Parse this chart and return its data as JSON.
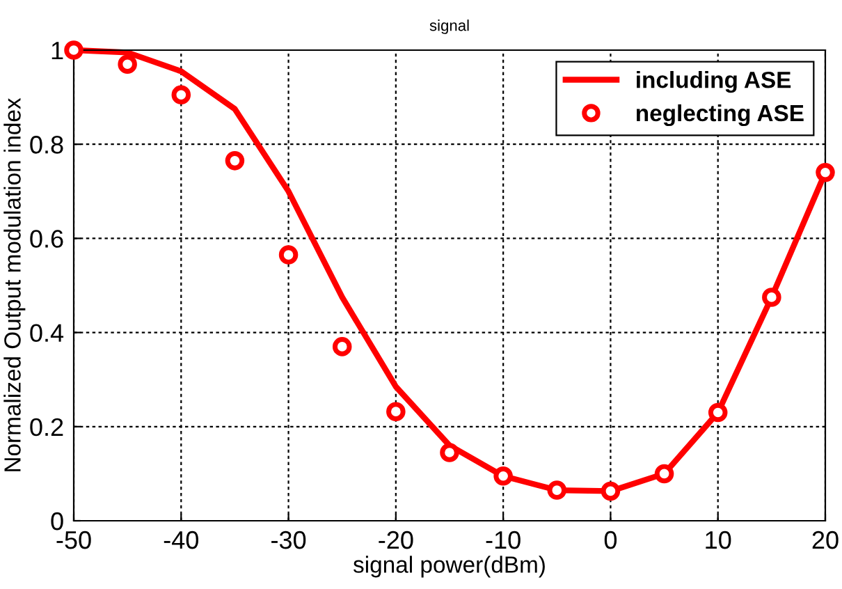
{
  "chart_data": {
    "type": "line",
    "title": "signal",
    "xlabel": "signal power(dBm)",
    "ylabel": "Normalized Output modulation index",
    "x": [
      -50,
      -45,
      -40,
      -35,
      -30,
      -25,
      -20,
      -15,
      -10,
      -5,
      0,
      5,
      10,
      15,
      20
    ],
    "series": [
      {
        "name": "including ASE",
        "color": "#ff0000",
        "marker": "none",
        "line_style": "solid",
        "values": [
          1.0,
          0.995,
          0.955,
          0.875,
          0.7,
          0.475,
          0.285,
          0.16,
          0.095,
          0.065,
          0.063,
          0.1,
          0.23,
          0.475,
          0.74
        ]
      },
      {
        "name": "neglecting ASE",
        "color": "#ff0000",
        "type": "scatter",
        "marker": "circle",
        "values": [
          1.0,
          0.97,
          0.905,
          0.765,
          0.565,
          0.37,
          0.232,
          0.145,
          0.095,
          0.065,
          0.063,
          0.1,
          0.23,
          0.475,
          0.74
        ]
      }
    ],
    "xlim": [
      -50,
      20
    ],
    "xticks": [
      -50,
      -40,
      -30,
      -20,
      -10,
      0,
      10,
      20
    ],
    "ylim": [
      0,
      1
    ],
    "yticks": [
      0,
      0.2,
      0.4,
      0.6,
      0.8,
      1
    ],
    "grid": true,
    "legend": "top right"
  }
}
